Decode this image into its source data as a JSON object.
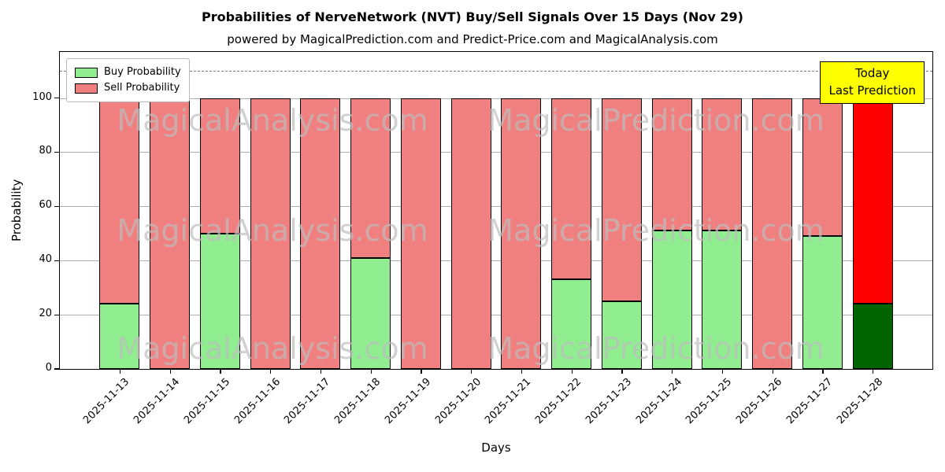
{
  "chart_data": {
    "type": "bar",
    "stacked": true,
    "title": "Probabilities of NerveNetwork (NVT) Buy/Sell Signals Over 15 Days (Nov 29)",
    "subtitle": "powered by MagicalPrediction.com and Predict-Price.com and MagicalAnalysis.com",
    "xlabel": "Days",
    "ylabel": "Probability",
    "categories": [
      "2025-11-13",
      "2025-11-14",
      "2025-11-15",
      "2025-11-16",
      "2025-11-17",
      "2025-11-18",
      "2025-11-19",
      "2025-11-20",
      "2025-11-21",
      "2025-11-22",
      "2025-11-23",
      "2025-11-24",
      "2025-11-25",
      "2025-11-26",
      "2025-11-27",
      "2025-11-28"
    ],
    "series": [
      {
        "name": "Buy Probability",
        "color": "#90EE90",
        "values": [
          24,
          0,
          50,
          0,
          0,
          41,
          0,
          0,
          0,
          33,
          25,
          51,
          51,
          0,
          49,
          24
        ]
      },
      {
        "name": "Sell Probability",
        "color": "#F08080",
        "values": [
          76,
          100,
          50,
          100,
          100,
          59,
          100,
          100,
          100,
          67,
          75,
          49,
          49,
          100,
          51,
          76
        ]
      }
    ],
    "highlight": {
      "index": 15,
      "colors": [
        "#006400",
        "#FF0000"
      ]
    },
    "ylim": [
      0,
      117
    ],
    "yticks": [
      0,
      20,
      40,
      60,
      80,
      100
    ],
    "dashed_line_y": 110,
    "grid": "horizontal-only",
    "legend_position": "upper-left",
    "bar_edge_color": "#000000",
    "annotation": {
      "lines": [
        "Today",
        "Last Prediction"
      ],
      "bg_color": "#FFFF00"
    },
    "watermarks": [
      "MagicalAnalysis.com",
      "MagicalPrediction.com"
    ]
  }
}
